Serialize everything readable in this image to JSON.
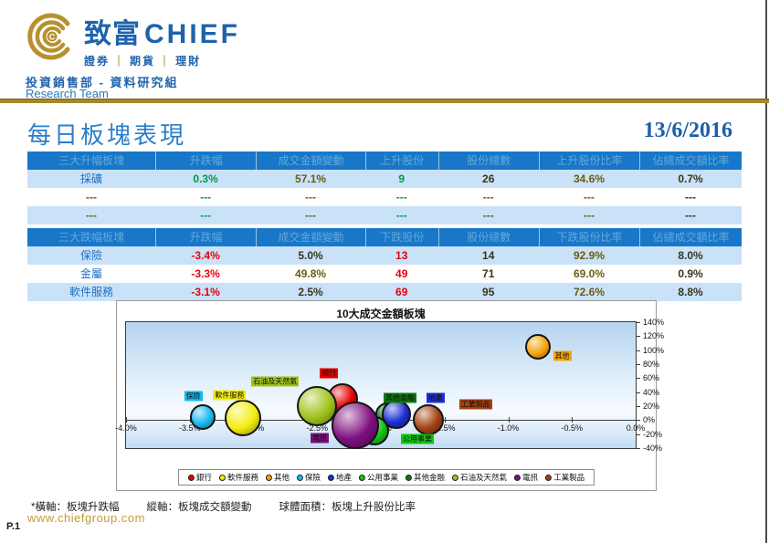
{
  "header": {
    "brand_cn": "致富",
    "brand_en": "CHIEF",
    "services": [
      "證券",
      "期貨",
      "理財"
    ],
    "dept": "投資銷售部 - 資料研究組",
    "team": "Research Team",
    "brand_color": "#1f63ac",
    "gold_color": "#a8872c",
    "logo_icon": "chief-concentric-arcs-logo"
  },
  "title": {
    "text": "每日板塊表現",
    "date": "13/6/2016"
  },
  "tables": [
    {
      "headers": [
        "三大升幅板塊",
        "升跌幅",
        "成交金額變動",
        "上升股份",
        "股份總數",
        "上升股份比率",
        "佔總成交額比率"
      ],
      "rows": [
        {
          "cells": [
            {
              "t": "採礦",
              "c": "blue"
            },
            {
              "t": "0.3%",
              "c": "green"
            },
            {
              "t": "57.1%",
              "c": "olive"
            },
            {
              "t": "9",
              "c": "green"
            },
            {
              "t": "26",
              "c": "dark"
            },
            {
              "t": "34.6%",
              "c": "olive"
            },
            {
              "t": "0.7%",
              "c": "dark"
            }
          ]
        },
        {
          "cells": [
            {
              "t": "---",
              "c": "olive"
            },
            {
              "t": "---",
              "c": "green"
            },
            {
              "t": "---",
              "c": "olive"
            },
            {
              "t": "---",
              "c": "green"
            },
            {
              "t": "---",
              "c": "olive"
            },
            {
              "t": "---",
              "c": "olive"
            },
            {
              "t": "---",
              "c": "dark"
            }
          ]
        },
        {
          "cells": [
            {
              "t": "---",
              "c": "olive"
            },
            {
              "t": "---",
              "c": "green"
            },
            {
              "t": "---",
              "c": "olive"
            },
            {
              "t": "---",
              "c": "green"
            },
            {
              "t": "---",
              "c": "olive"
            },
            {
              "t": "---",
              "c": "olive"
            },
            {
              "t": "---",
              "c": "dark"
            }
          ]
        }
      ]
    },
    {
      "headers": [
        "三大跌幅板塊",
        "升跌幅",
        "成交金額變動",
        "下跌股份",
        "股份總數",
        "下跌股份比率",
        "佔總成交額比率"
      ],
      "rows": [
        {
          "cells": [
            {
              "t": "保險",
              "c": "blue"
            },
            {
              "t": "-3.4%",
              "c": "red"
            },
            {
              "t": "5.0%",
              "c": "dark"
            },
            {
              "t": "13",
              "c": "red"
            },
            {
              "t": "14",
              "c": "dark"
            },
            {
              "t": "92.9%",
              "c": "olive"
            },
            {
              "t": "8.0%",
              "c": "dark"
            }
          ]
        },
        {
          "cells": [
            {
              "t": "金屬",
              "c": "blue"
            },
            {
              "t": "-3.3%",
              "c": "red"
            },
            {
              "t": "49.8%",
              "c": "olive"
            },
            {
              "t": "49",
              "c": "red"
            },
            {
              "t": "71",
              "c": "dark"
            },
            {
              "t": "69.0%",
              "c": "olive"
            },
            {
              "t": "0.9%",
              "c": "dark"
            }
          ]
        },
        {
          "cells": [
            {
              "t": "軟件服務",
              "c": "blue"
            },
            {
              "t": "-3.1%",
              "c": "red"
            },
            {
              "t": "2.5%",
              "c": "dark"
            },
            {
              "t": "69",
              "c": "red"
            },
            {
              "t": "95",
              "c": "dark"
            },
            {
              "t": "72.6%",
              "c": "olive"
            },
            {
              "t": "8.8%",
              "c": "dark"
            }
          ]
        }
      ]
    }
  ],
  "chart_data": {
    "type": "scatter",
    "subtype": "bubble",
    "title": "10大成交金額板塊",
    "xlabel": "板塊升跌幅",
    "ylabel": "板塊成交額變動",
    "bubble_area": "板塊上升股份比率",
    "xlim": [
      -4.0,
      0.0
    ],
    "ylim": [
      -40,
      140
    ],
    "x_ticks": [
      "-4.0%",
      "-3.5%",
      "-3.0%",
      "-2.5%",
      "-2.0%",
      "-1.5%",
      "-1.0%",
      "-0.5%",
      "0.0%"
    ],
    "y_ticks": [
      "140%",
      "120%",
      "100%",
      "80%",
      "60%",
      "40%",
      "20%",
      "0%",
      "-20%",
      "-40%"
    ],
    "y_axis_side": "right",
    "grid": false,
    "legend_position": "bottom",
    "series": [
      {
        "name": "銀行",
        "x": -2.3,
        "y": 30,
        "r": 17,
        "color": "#e60000",
        "label_dx": -15,
        "label_dy": -28
      },
      {
        "name": "石油及天然氣",
        "x": -2.5,
        "y": 20,
        "r": 22,
        "color": "#9fc41c",
        "label_dx": -46,
        "label_dy": -27
      },
      {
        "name": "其他金融",
        "x": -1.95,
        "y": 8,
        "r": 13,
        "color": "#0b7a0b",
        "label_dx": 14,
        "label_dy": -18
      },
      {
        "name": "公用事業",
        "x": -2.05,
        "y": -15,
        "r": 16,
        "color": "#12c412",
        "label_dx": 47,
        "label_dy": 9
      },
      {
        "name": "電訊",
        "x": -2.2,
        "y": -8,
        "r": 26,
        "color": "#7d0f7d",
        "label_dx": -39,
        "label_dy": 14
      },
      {
        "name": "地產",
        "x": -1.88,
        "y": 8,
        "r": 16,
        "color": "#1c2fd4",
        "label_dx": 43,
        "label_dy": -18
      },
      {
        "name": "工業製品",
        "x": -1.63,
        "y": 0,
        "r": 17,
        "color": "#a24012",
        "label_dx": 52,
        "label_dy": -17
      },
      {
        "name": "保險",
        "x": -3.4,
        "y": 5,
        "r": 14,
        "color": "#15b9ef",
        "label_dx": -10,
        "label_dy": -23
      },
      {
        "name": "軟件服務",
        "x": -3.08,
        "y": 2.5,
        "r": 20,
        "color": "#f2ee0e",
        "label_dx": -15,
        "label_dy": -25
      },
      {
        "name": "其他",
        "x": -0.77,
        "y": 105,
        "r": 14,
        "color": "#f5a40c",
        "label_dx": 27,
        "label_dy": 10
      }
    ],
    "legend": [
      {
        "label": "銀行",
        "color": "#e60000"
      },
      {
        "label": "軟件服務",
        "color": "#f2ee0e"
      },
      {
        "label": "其他",
        "color": "#f5a40c"
      },
      {
        "label": "保險",
        "color": "#15b9ef"
      },
      {
        "label": "地產",
        "color": "#1c2fd4"
      },
      {
        "label": "公用事業",
        "color": "#12c412"
      },
      {
        "label": "其他金融",
        "color": "#0b7a0b"
      },
      {
        "label": "石油及天然氣",
        "color": "#9fc41c"
      },
      {
        "label": "電訊",
        "color": "#7d0f7d"
      },
      {
        "label": "工業製品",
        "color": "#a24012"
      }
    ]
  },
  "footnote": {
    "x_axis": "*橫軸：板塊升跌幅",
    "y_axis": "縱軸：板塊成交額變動",
    "bubble": "球體面積：板塊上升股份比率"
  },
  "footer": {
    "website": "www.chiefgroup.com",
    "page_number": "P.1"
  }
}
